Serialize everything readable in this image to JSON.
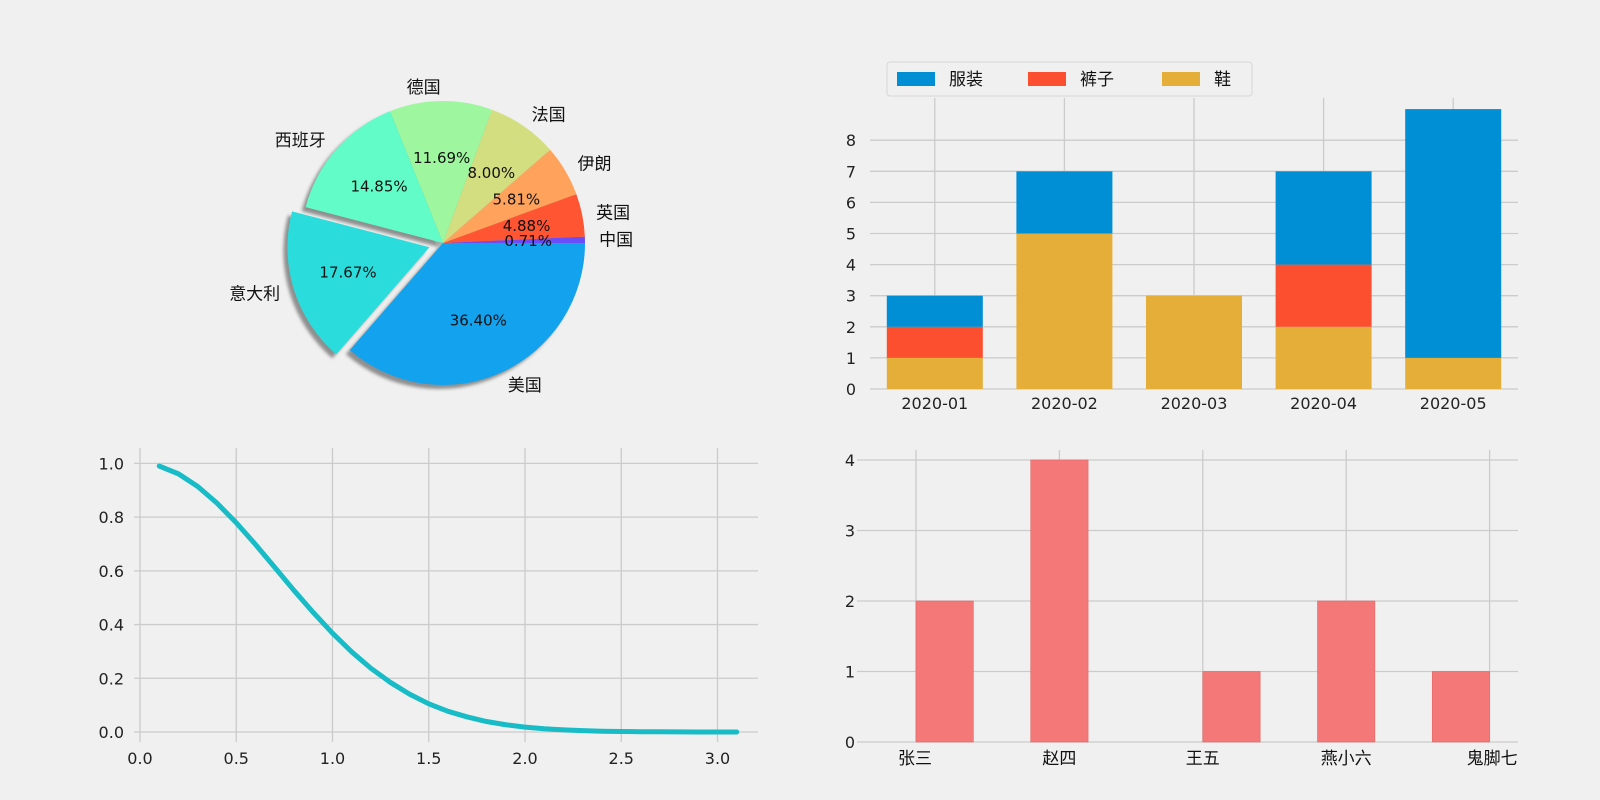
{
  "chart_data": [
    {
      "type": "pie",
      "categories": [
        "中国",
        "英国",
        "伊朗",
        "法国",
        "德国",
        "西班牙",
        "意大利",
        "美国"
      ],
      "values": [
        0.71,
        4.88,
        5.81,
        8.0,
        11.69,
        14.85,
        17.67,
        36.4
      ],
      "value_labels": [
        "0.71%",
        "4.88%",
        "5.81%",
        "8.00%",
        "11.69%",
        "14.85%",
        "17.67%",
        "36.40%"
      ],
      "colors": [
        "#6a4cf8",
        "#ff5533",
        "#ffa35c",
        "#d3de80",
        "#9ef79e",
        "#62fcc8",
        "#2adddc",
        "#12a2ee"
      ],
      "exploded": "意大利",
      "shadow": true
    },
    {
      "type": "bar",
      "stacked": true,
      "categories": [
        "2020-01",
        "2020-02",
        "2020-03",
        "2020-04",
        "2020-05"
      ],
      "series": [
        {
          "name": "鞋",
          "values": [
            1,
            5,
            3,
            2,
            1
          ],
          "color": "#e5ae38"
        },
        {
          "name": "裤子",
          "values": [
            1,
            0,
            0,
            2,
            0
          ],
          "color": "#fc4f30"
        },
        {
          "name": "服装",
          "values": [
            1,
            2,
            0,
            3,
            8
          ],
          "color": "#008fd5"
        }
      ],
      "legend_order": [
        "服装",
        "裤子",
        "鞋"
      ],
      "legend": "top-left",
      "ylim": [
        0,
        9
      ],
      "yticks": [
        0,
        1,
        2,
        3,
        4,
        5,
        6,
        7,
        8
      ],
      "grid": true
    },
    {
      "type": "line",
      "x": [
        0.1,
        0.2,
        0.3,
        0.4,
        0.5,
        0.6,
        0.7,
        0.8,
        0.9,
        1.0,
        1.1,
        1.2,
        1.3,
        1.4,
        1.5,
        1.6,
        1.7,
        1.8,
        1.9,
        2.0,
        2.1,
        2.2,
        2.3,
        2.4,
        2.5,
        2.6,
        2.7,
        2.8,
        2.9,
        3.0,
        3.1
      ],
      "series": [
        {
          "values": [
            0.99,
            0.961,
            0.914,
            0.852,
            0.779,
            0.698,
            0.613,
            0.527,
            0.445,
            0.368,
            0.298,
            0.237,
            0.185,
            0.141,
            0.105,
            0.077,
            0.056,
            0.039,
            0.027,
            0.018,
            0.012,
            0.008,
            0.005,
            0.003,
            0.002,
            0.001,
            0.001,
            0.0004,
            0.0002,
            0.0001,
            0.0001
          ],
          "color": "#17bcc6"
        }
      ],
      "xlim": [
        0,
        3.2
      ],
      "ylim": [
        -0.04,
        1.04
      ],
      "xticks": [
        "0.0",
        "0.5",
        "1.0",
        "1.5",
        "2.0",
        "2.5",
        "3.0"
      ],
      "yticks": [
        "0.0",
        "0.2",
        "0.4",
        "0.6",
        "0.8",
        "1.0"
      ],
      "grid": true
    },
    {
      "type": "bar",
      "subtype": "histogram",
      "categories": [
        "张三",
        "赵四",
        "王五",
        "燕小六",
        "鬼脚七"
      ],
      "bins": [
        0,
        0.4,
        0.8,
        1.2,
        1.6,
        2.0,
        2.4,
        2.8,
        3.2,
        3.6,
        4.0
      ],
      "counts": [
        2,
        0,
        4,
        0,
        0,
        1,
        0,
        2,
        0,
        1
      ],
      "color": "#f47878",
      "ylim": [
        0,
        4.2
      ],
      "yticks": [
        0,
        1,
        2,
        3,
        4
      ],
      "grid": true
    }
  ]
}
